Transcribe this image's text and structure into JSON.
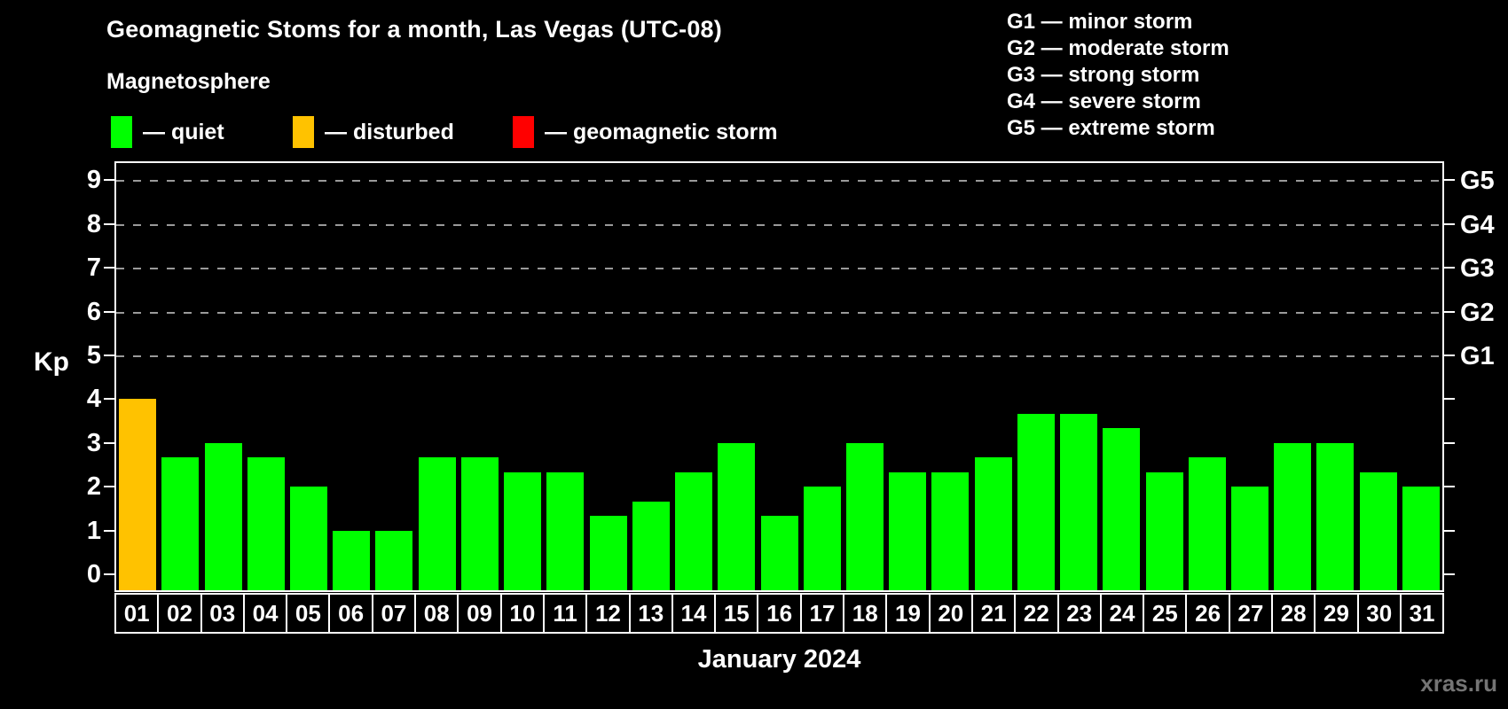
{
  "title": "Geomagnetic Stoms for a month, Las Vegas (UTC-08)",
  "subtitle": "Magnetosphere",
  "status_legend": [
    {
      "name": "quiet",
      "label": "— quiet",
      "color": "#00ff00"
    },
    {
      "name": "disturbed",
      "label": "— disturbed",
      "color": "#ffc200"
    },
    {
      "name": "storm",
      "label": "— geomagnetic storm",
      "color": "#ff0000"
    }
  ],
  "g_scale_legend": [
    "G1 — minor storm",
    "G2 — moderate storm",
    "G3 — strong storm",
    "G4 — severe storm",
    "G5 — extreme storm"
  ],
  "watermark": "xras.ru",
  "chart_data": {
    "type": "bar",
    "title": "Geomagnetic Stoms for a month, Las Vegas (UTC-08)",
    "xlabel": "January 2024",
    "ylabel": "Kp",
    "ylim": [
      0,
      9
    ],
    "y_ticks": [
      0,
      1,
      2,
      3,
      4,
      5,
      6,
      7,
      8,
      9
    ],
    "gridlines_at_kp": [
      5,
      6,
      7,
      8,
      9
    ],
    "right_axis_labels": [
      {
        "label": "G1",
        "kp": 5
      },
      {
        "label": "G2",
        "kp": 6
      },
      {
        "label": "G3",
        "kp": 7
      },
      {
        "label": "G4",
        "kp": 8
      },
      {
        "label": "G5",
        "kp": 9
      }
    ],
    "legend_position": "top-left",
    "grid": "dashed-horizontal",
    "background": "#000000",
    "categories": [
      "01",
      "02",
      "03",
      "04",
      "05",
      "06",
      "07",
      "08",
      "09",
      "10",
      "11",
      "12",
      "13",
      "14",
      "15",
      "16",
      "17",
      "18",
      "19",
      "20",
      "21",
      "22",
      "23",
      "24",
      "25",
      "26",
      "27",
      "28",
      "29",
      "30",
      "31"
    ],
    "series": [
      {
        "name": "Kp index",
        "values": [
          4.0,
          2.67,
          3.0,
          2.67,
          2.0,
          1.0,
          1.0,
          2.67,
          2.67,
          2.33,
          2.33,
          1.33,
          1.67,
          2.33,
          3.0,
          1.33,
          2.0,
          3.0,
          2.33,
          2.33,
          2.67,
          3.67,
          3.67,
          3.33,
          2.33,
          2.67,
          2.0,
          3.0,
          3.0,
          2.33,
          2.0
        ]
      }
    ],
    "bar_statuses": [
      "disturbed",
      "quiet",
      "quiet",
      "quiet",
      "quiet",
      "quiet",
      "quiet",
      "quiet",
      "quiet",
      "quiet",
      "quiet",
      "quiet",
      "quiet",
      "quiet",
      "quiet",
      "quiet",
      "quiet",
      "quiet",
      "quiet",
      "quiet",
      "quiet",
      "quiet",
      "quiet",
      "quiet",
      "quiet",
      "quiet",
      "quiet",
      "quiet",
      "quiet",
      "quiet",
      "quiet"
    ]
  }
}
